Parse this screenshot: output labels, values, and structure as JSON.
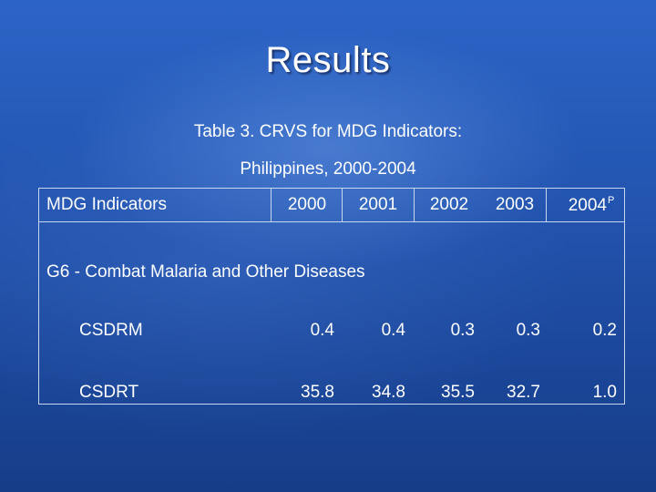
{
  "slide": {
    "title": "Results",
    "caption_line1": "Table 3. CRVS for MDG Indicators:",
    "caption_line2": "Philippines, 2000-2004"
  },
  "table": {
    "header_label": "MDG Indicators",
    "years": [
      "2000",
      "2001",
      "2002",
      "2003",
      "2004"
    ],
    "last_year_superscript": "P",
    "section_label": "G6 - Combat Malaria and Other Diseases",
    "rows": [
      {
        "label": "CSDRM",
        "values": [
          "0.4",
          "0.4",
          "0.3",
          "0.3",
          "0.2"
        ]
      },
      {
        "label": "CSDRT",
        "values": [
          "35.8",
          "34.8",
          "35.5",
          "32.7",
          "1.0"
        ]
      }
    ]
  }
}
